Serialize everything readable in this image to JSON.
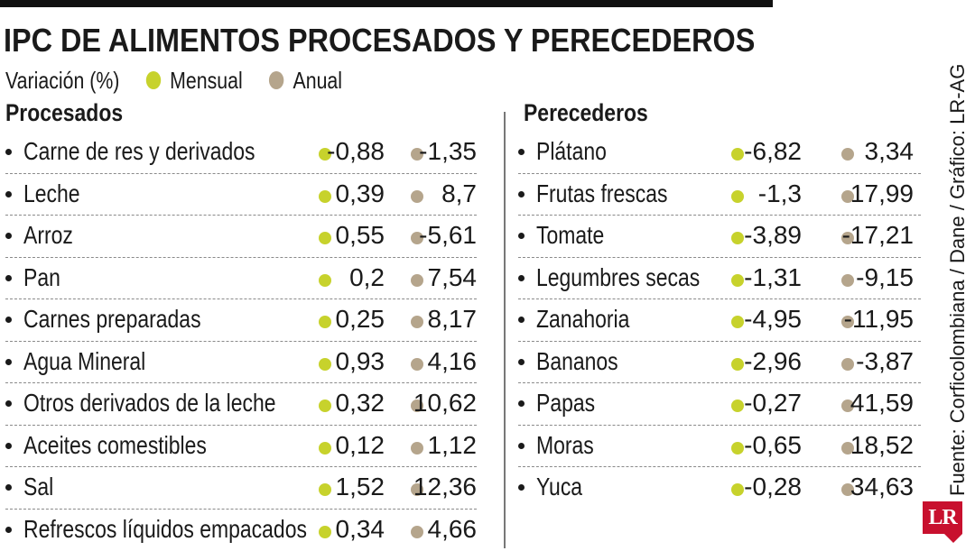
{
  "colors": {
    "monthly": "#c7d22c",
    "annual": "#b5a58c",
    "text": "#1a1a1a"
  },
  "header": {
    "title": "IPC DE ALIMENTOS PROCESADOS Y PERECEDEROS",
    "legend_unit": "Variación (%)",
    "legend_monthly": "Mensual",
    "legend_annual": "Anual"
  },
  "chart_data": {
    "type": "table",
    "title": "IPC DE ALIMENTOS PROCESADOS Y PERECEDEROS",
    "unit": "Variación (%)",
    "series": [
      {
        "name": "Mensual"
      },
      {
        "name": "Anual"
      }
    ],
    "groups": [
      {
        "name": "Procesados",
        "items": [
          {
            "label": "Carne de res y derivados",
            "monthly": "-0,88",
            "annual": "-1,35"
          },
          {
            "label": "Leche",
            "monthly": "0,39",
            "annual": "8,7"
          },
          {
            "label": "Arroz",
            "monthly": "0,55",
            "annual": "-5,61"
          },
          {
            "label": "Pan",
            "monthly": "0,2",
            "annual": "7,54"
          },
          {
            "label": "Carnes preparadas",
            "monthly": "0,25",
            "annual": "8,17"
          },
          {
            "label": "Agua Mineral",
            "monthly": "0,93",
            "annual": "4,16"
          },
          {
            "label": "Otros derivados de la leche",
            "monthly": "0,32",
            "annual": "10,62"
          },
          {
            "label": "Aceites comestibles",
            "monthly": "0,12",
            "annual": "1,12"
          },
          {
            "label": "Sal",
            "monthly": "1,52",
            "annual": "12,36"
          },
          {
            "label": "Refrescos líquidos empacados",
            "monthly": "0,34",
            "annual": "4,66"
          }
        ]
      },
      {
        "name": "Perecederos",
        "items": [
          {
            "label": "Plátano",
            "monthly": "-6,82",
            "annual": "3,34"
          },
          {
            "label": "Frutas frescas",
            "monthly": "-1,3",
            "annual": "17,99"
          },
          {
            "label": "Tomate",
            "monthly": "-3,89",
            "annual": "-17,21"
          },
          {
            "label": "Legumbres secas",
            "monthly": "-1,31",
            "annual": "-9,15"
          },
          {
            "label": "Zanahoria",
            "monthly": "-4,95",
            "annual": "-11,95"
          },
          {
            "label": "Bananos",
            "monthly": "-2,96",
            "annual": "-3,87"
          },
          {
            "label": "Papas",
            "monthly": "-0,27",
            "annual": "41,59"
          },
          {
            "label": "Moras",
            "monthly": "-0,65",
            "annual": "18,52"
          },
          {
            "label": "Yuca",
            "monthly": "-0,28",
            "annual": "34,63"
          }
        ]
      }
    ]
  },
  "footer": {
    "source": "Fuente: Corficolombiana / Dane / Gráfico: LR-AG",
    "logo_text": "LR"
  }
}
